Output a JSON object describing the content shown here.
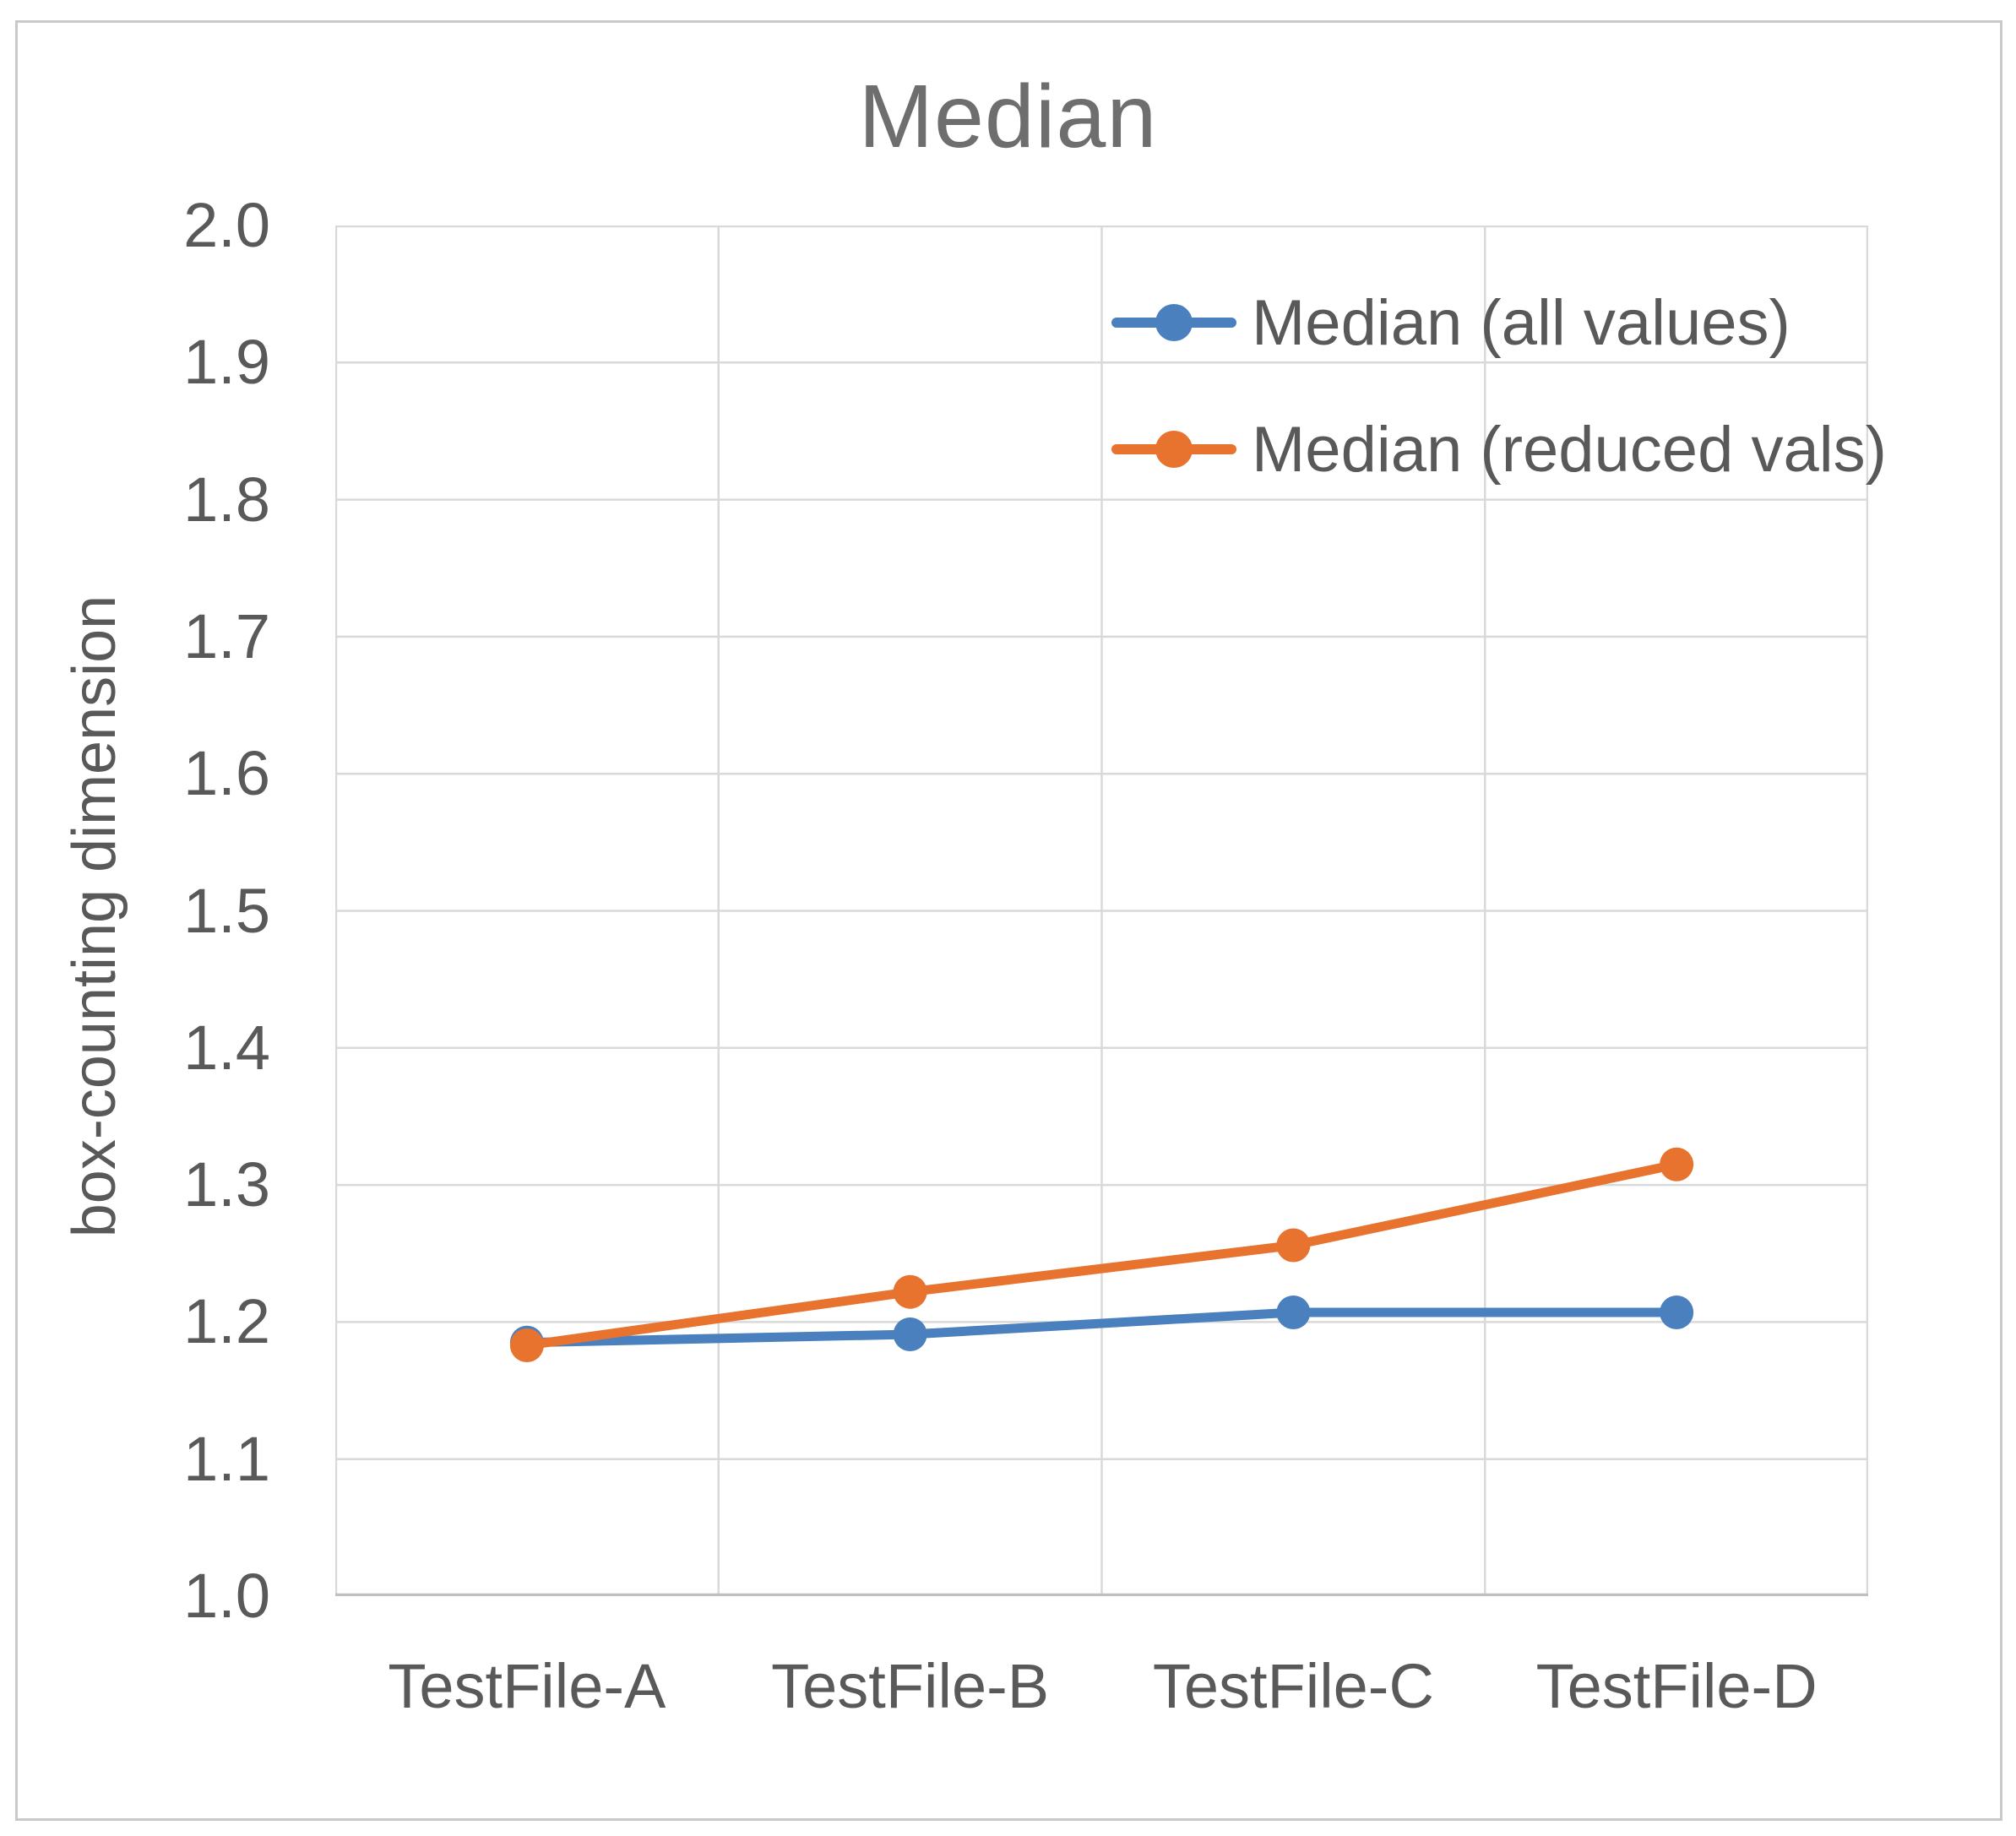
{
  "page": {
    "background": "#ffffff",
    "figure_border_color": "#c9c9c9"
  },
  "chart_data": {
    "type": "line",
    "title": "Median",
    "title_color": "#6e6e6e",
    "categories": [
      "TestFile-A",
      "TestFile-B",
      "TestFile-C",
      "TestFile-D"
    ],
    "series": [
      {
        "name": "Median (all values)",
        "color": "#4a80be",
        "values": [
          1.185,
          1.191,
          1.207,
          1.207
        ]
      },
      {
        "name": "Median (reduced vals)",
        "color": "#e8732e",
        "values": [
          1.183,
          1.222,
          1.256,
          1.315
        ]
      }
    ],
    "xlabel": "",
    "ylabel": "box-counting dimension",
    "ylim": [
      1.0,
      2.0
    ],
    "ytick_labels": [
      "2.0",
      "1.9",
      "1.8",
      "1.7",
      "1.6",
      "1.5",
      "1.4",
      "1.3",
      "1.2",
      "1.1",
      "1.0"
    ],
    "grid": "on",
    "gridline_color": "#d9d9d9",
    "axis_line_color": "#bfbfbf",
    "axis_text_color": "#595959",
    "legend_position": "top-right-inside",
    "marker": "circle"
  }
}
